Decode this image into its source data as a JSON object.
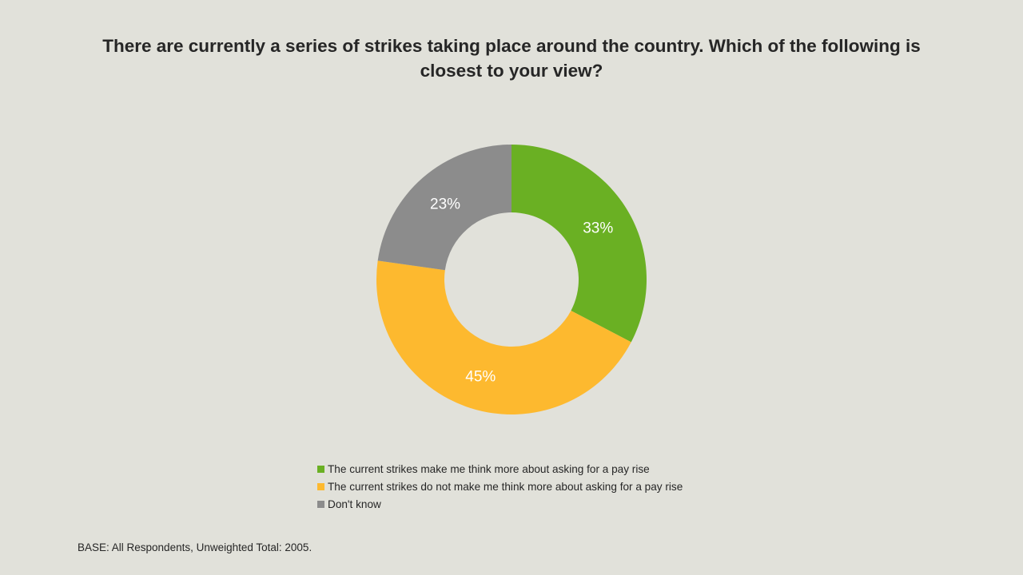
{
  "title": "There are currently a series of strikes taking place around the country.  Which of the following is closest to your view?",
  "footnote": "BASE: All  Respondents, Unweighted Total: 2005.",
  "legend": [
    {
      "label": "The current strikes make me think more about asking for a pay rise",
      "color": "#6ab023"
    },
    {
      "label": "The current strikes do not make me think more about asking for a pay rise",
      "color": "#fdb92f"
    },
    {
      "label": "Don't know",
      "color": "#8c8c8c"
    }
  ],
  "chart_data": {
    "type": "pie",
    "subtype": "donut",
    "title": "There are currently a series of strikes taking place around the country.  Which of the following is closest to your view?",
    "categories": [
      "The current strikes make me think more about asking for a pay rise",
      "The current strikes do not make me think more about asking for a pay rise",
      "Don't know"
    ],
    "values": [
      33,
      45,
      23
    ],
    "labels": [
      "33%",
      "45%",
      "23%"
    ],
    "colors": [
      "#6ab023",
      "#fdb92f",
      "#8c8c8c"
    ],
    "legend_position": "bottom",
    "start_angle": 0,
    "direction": "clockwise"
  }
}
